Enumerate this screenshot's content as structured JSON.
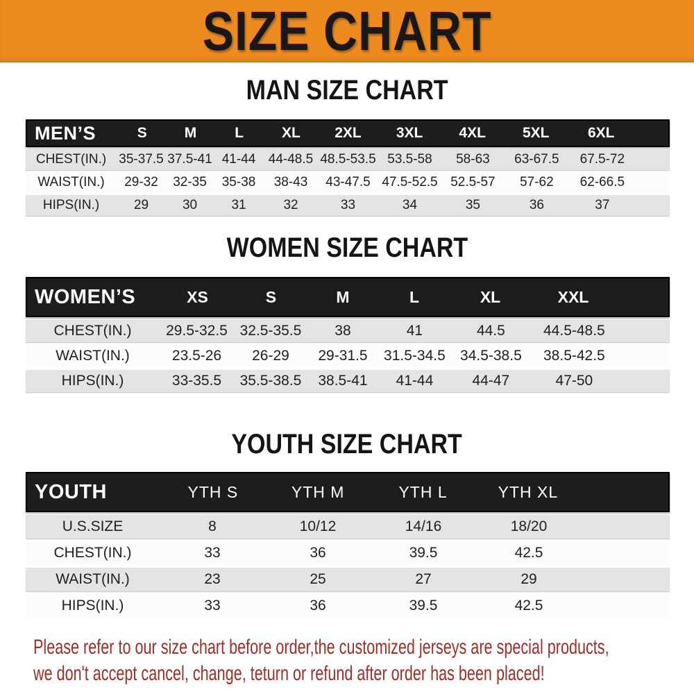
{
  "banner": {
    "title": "SIZE CHART"
  },
  "sections": [
    {
      "heading": "MAN SIZE CHART",
      "label": "MEN’S",
      "columns": [
        "S",
        "M",
        "L",
        "XL",
        "2XL",
        "3XL",
        "4XL",
        "5XL",
        "6XL"
      ],
      "rows": [
        {
          "label": "CHEST(IN.)",
          "values": [
            "35-37.5",
            "37.5-41",
            "41-44",
            "44-48.5",
            "48.5-53.5",
            "53.5-58",
            "58-63",
            "63-67.5",
            "67.5-72"
          ]
        },
        {
          "label": "WAIST(IN.)",
          "values": [
            "29-32",
            "32-35",
            "35-38",
            "38-43",
            "43-47.5",
            "47.5-52.5",
            "52.5-57",
            "57-62",
            "62-66.5"
          ]
        },
        {
          "label": "HIPS(IN.)",
          "values": [
            "29",
            "30",
            "31",
            "32",
            "33",
            "34",
            "35",
            "36",
            "37"
          ]
        }
      ]
    },
    {
      "heading": "WOMEN SIZE CHART",
      "label": "WOMEN’S",
      "columns": [
        "XS",
        "S",
        "M",
        "L",
        "XL",
        "XXL"
      ],
      "rows": [
        {
          "label": "CHEST(IN.)",
          "values": [
            "29.5-32.5",
            "32.5-35.5",
            "38",
            "41",
            "44.5",
            "44.5-48.5"
          ]
        },
        {
          "label": "WAIST(IN.)",
          "values": [
            "23.5-26",
            "26-29",
            "29-31.5",
            "31.5-34.5",
            "34.5-38.5",
            "38.5-42.5"
          ]
        },
        {
          "label": "HIPS(IN.)",
          "values": [
            "33-35.5",
            "35.5-38.5",
            "38.5-41",
            "41-44",
            "44-47",
            "47-50"
          ]
        }
      ]
    },
    {
      "heading": "YOUTH SIZE CHART",
      "label": "YOUTH",
      "columns": [
        "YTH S",
        "YTH M",
        "YTH L",
        "YTH XL"
      ],
      "rows": [
        {
          "label": "U.S.SIZE",
          "values": [
            "8",
            "10/12",
            "14/16",
            "18/20"
          ]
        },
        {
          "label": "CHEST(IN.)",
          "values": [
            "33",
            "36",
            "39.5",
            "42.5"
          ]
        },
        {
          "label": "WAIST(IN.)",
          "values": [
            "23",
            "25",
            "27",
            "29"
          ]
        },
        {
          "label": "HIPS(IN.)",
          "values": [
            "33",
            "36",
            "39.5",
            "42.5"
          ]
        }
      ]
    }
  ],
  "disclaimer": {
    "line1": "Please refer to our size chart before order,the customized jerseys are special products,",
    "line2": "we don't accept cancel, change, teturn or refund after order has been placed!"
  },
  "colors": {
    "banner_bg": "#ee8b1f",
    "banner_text": "#181818",
    "header_bar_bg": "#1d1d1d",
    "row_gray": "#e4e4e4",
    "row_white": "#fcfcfc",
    "cell_text": "#1e1e1e",
    "disclaimer_text": "#9e2d26"
  }
}
